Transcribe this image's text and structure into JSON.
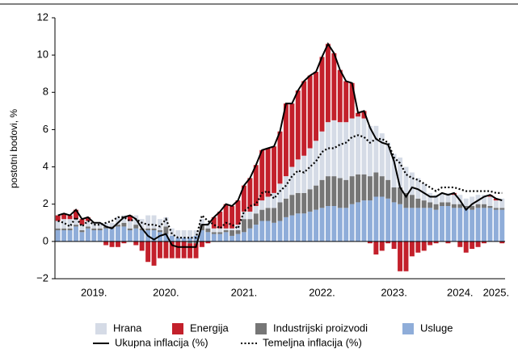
{
  "chart_data": {
    "type": "bar",
    "stacked": true,
    "ylabel": "postotni bodovi, %",
    "ylim": [
      -2,
      12
    ],
    "yticks": [
      {
        "value": -2,
        "label": "−2"
      },
      0,
      2,
      4,
      6,
      8,
      10,
      12
    ],
    "categories": [
      null,
      null,
      null,
      null,
      null,
      null,
      "2019.",
      null,
      null,
      null,
      null,
      null,
      null,
      null,
      null,
      null,
      null,
      null,
      "2020.",
      null,
      null,
      null,
      null,
      null,
      null,
      null,
      null,
      null,
      null,
      null,
      null,
      "2021.",
      null,
      null,
      null,
      null,
      null,
      null,
      null,
      null,
      null,
      null,
      null,
      null,
      "2022.",
      null,
      null,
      null,
      null,
      null,
      null,
      null,
      null,
      null,
      null,
      null,
      "2023.",
      null,
      null,
      null,
      null,
      null,
      null,
      null,
      null,
      null,
      null,
      "2024.",
      null,
      null,
      null,
      null,
      null,
      "2025.",
      null
    ],
    "series": [
      {
        "name": "Usluge",
        "color": "#8fadd9",
        "values": [
          0.6,
          0.6,
          0.6,
          0.8,
          0.5,
          0.7,
          0.6,
          0.6,
          0.7,
          0.7,
          0.8,
          0.8,
          0.6,
          0.7,
          0.6,
          0.6,
          0.6,
          0.5,
          0.4,
          0.3,
          0.2,
          0.2,
          0.2,
          0.3,
          0.6,
          0.5,
          0.4,
          0.4,
          0.5,
          0.3,
          0.4,
          0.5,
          0.7,
          0.9,
          1.1,
          1.1,
          1.0,
          1.1,
          1.3,
          1.4,
          1.5,
          1.5,
          1.6,
          1.7,
          1.8,
          1.9,
          1.9,
          1.8,
          1.8,
          2.0,
          2.1,
          2.2,
          2.2,
          2.4,
          2.4,
          2.3,
          2.1,
          2.0,
          1.8,
          1.8,
          1.8,
          1.8,
          1.8,
          1.7,
          1.9,
          1.9,
          1.8,
          1.8,
          1.8,
          1.7,
          1.8,
          1.8,
          1.8,
          1.7,
          1.7
        ]
      },
      {
        "name": "Industrijski proizvodi",
        "color": "#767676",
        "values": [
          0.1,
          0.1,
          0.1,
          0.1,
          0.1,
          0.1,
          0.1,
          0.1,
          0.1,
          0.1,
          0.1,
          0.2,
          0.1,
          0.2,
          0.1,
          0.1,
          0.1,
          0.1,
          0.4,
          0.0,
          0.0,
          0.0,
          -0.1,
          -0.1,
          0.3,
          0.2,
          0.1,
          0.1,
          0.1,
          0.3,
          0.2,
          0.7,
          0.5,
          0.6,
          0.6,
          0.7,
          0.8,
          1.0,
          1.0,
          1.1,
          1.1,
          1.1,
          1.2,
          1.3,
          1.5,
          1.6,
          1.6,
          1.6,
          1.5,
          1.5,
          1.5,
          1.4,
          1.3,
          1.3,
          1.1,
          1.0,
          0.8,
          0.9,
          0.8,
          0.7,
          0.5,
          0.4,
          0.3,
          0.3,
          0.2,
          0.2,
          0.2,
          0.2,
          0.1,
          0.2,
          0.2,
          0.2,
          0.1,
          0.1,
          0.1
        ]
      },
      {
        "name": "Hrana",
        "color": "#d5dbe6",
        "values": [
          0.4,
          0.5,
          0.5,
          0.3,
          0.3,
          0.3,
          0.3,
          0.3,
          0.2,
          0.2,
          0.4,
          0.4,
          0.4,
          0.5,
          0.5,
          0.7,
          0.7,
          0.6,
          0.5,
          0.4,
          0.4,
          0.4,
          0.4,
          0.3,
          0.3,
          0.3,
          0.2,
          0.2,
          0.1,
          0.1,
          0.3,
          0.4,
          0.4,
          0.4,
          0.5,
          0.6,
          0.8,
          1.0,
          1.2,
          1.5,
          1.8,
          2.0,
          2.2,
          2.4,
          2.6,
          2.9,
          3.0,
          3.0,
          3.1,
          3.1,
          3.1,
          3.0,
          2.7,
          2.5,
          2.3,
          2.0,
          1.8,
          1.6,
          1.4,
          1.2,
          1.1,
          0.9,
          0.5,
          0.5,
          0.5,
          0.5,
          0.5,
          0.5,
          0.4,
          0.5,
          0.5,
          0.5,
          0.5,
          0.4,
          0.5
        ]
      },
      {
        "name": "Energija",
        "color": "#c3202b",
        "values": [
          0.3,
          0.3,
          0.2,
          0.5,
          0.3,
          0.2,
          0.0,
          0.0,
          -0.2,
          -0.3,
          -0.3,
          -0.1,
          0.3,
          -0.2,
          -0.5,
          -1.1,
          -1.3,
          -0.9,
          -0.9,
          -0.9,
          -0.9,
          -0.9,
          -0.8,
          -0.8,
          -0.3,
          -0.1,
          0.6,
          0.9,
          1.3,
          1.2,
          1.3,
          1.4,
          1.8,
          2.2,
          2.7,
          2.6,
          2.5,
          2.8,
          3.9,
          3.4,
          3.7,
          4.0,
          3.9,
          3.7,
          4.0,
          4.2,
          3.6,
          2.8,
          2.2,
          1.9,
          0.2,
          0.4,
          -0.1,
          -0.7,
          -0.5,
          -0.1,
          -0.4,
          -1.6,
          -1.6,
          -0.8,
          -0.6,
          -0.5,
          -0.2,
          -0.1,
          0.0,
          -0.1,
          0.1,
          -0.3,
          -0.6,
          -0.4,
          -0.3,
          -0.1,
          0.1,
          0.1,
          -0.1
        ]
      },
      {
        "name": "Ukupna inflacija (%)",
        "type": "line",
        "dash": false,
        "color": "#000000",
        "values": [
          1.4,
          1.5,
          1.4,
          1.7,
          1.2,
          1.3,
          1.0,
          1.0,
          0.8,
          0.7,
          1.0,
          1.3,
          1.4,
          1.2,
          0.7,
          0.3,
          0.1,
          0.3,
          0.4,
          -0.2,
          -0.3,
          -0.3,
          -0.3,
          -0.3,
          0.9,
          0.9,
          1.3,
          1.6,
          2.0,
          1.9,
          2.2,
          3.0,
          3.4,
          4.1,
          4.9,
          5.0,
          5.1,
          5.9,
          7.4,
          7.4,
          8.1,
          8.6,
          8.9,
          9.1,
          9.9,
          10.6,
          10.1,
          9.2,
          8.6,
          8.5,
          6.9,
          7.0,
          6.1,
          5.5,
          5.3,
          5.2,
          4.3,
          2.9,
          2.4,
          2.9,
          2.8,
          2.6,
          2.4,
          2.4,
          2.6,
          2.5,
          2.6,
          2.2,
          1.7,
          2.0,
          2.2,
          2.4,
          2.5,
          2.3,
          2.2
        ]
      },
      {
        "name": "Temeljna inflacija (%)",
        "type": "line",
        "dash": true,
        "color": "#000000",
        "values": [
          1.1,
          1.0,
          0.8,
          1.3,
          0.8,
          1.1,
          0.9,
          0.9,
          1.0,
          1.1,
          1.3,
          1.3,
          1.1,
          1.2,
          1.0,
          0.9,
          0.9,
          0.8,
          1.2,
          0.4,
          0.2,
          0.2,
          0.2,
          0.2,
          1.4,
          1.1,
          0.9,
          0.7,
          1.0,
          0.9,
          0.7,
          1.6,
          1.9,
          2.0,
          2.6,
          2.7,
          2.3,
          2.7,
          3.0,
          3.5,
          3.8,
          3.7,
          4.0,
          4.3,
          4.8,
          5.0,
          5.0,
          5.2,
          5.3,
          5.6,
          5.7,
          5.6,
          5.3,
          5.5,
          5.5,
          5.3,
          4.5,
          4.2,
          3.6,
          3.4,
          3.3,
          3.1,
          2.9,
          2.7,
          2.9,
          2.9,
          2.9,
          2.8,
          2.7,
          2.7,
          2.7,
          2.7,
          2.7,
          2.6,
          2.6
        ]
      }
    ],
    "legend_order": [
      2,
      3,
      1,
      0,
      4,
      5
    ]
  }
}
